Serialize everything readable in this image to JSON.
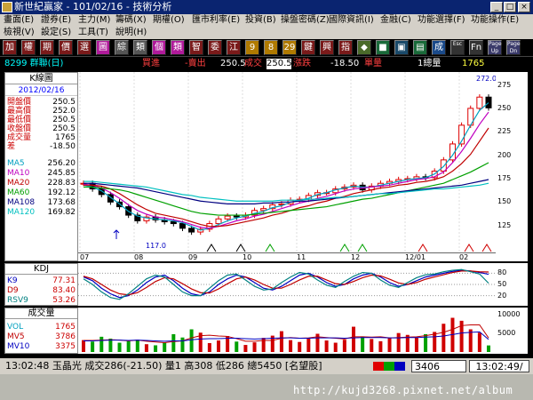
{
  "window": {
    "title": "新世紀贏家 - 101/02/16 - 技術分析",
    "min": "_",
    "max": "□",
    "close": "×"
  },
  "menu": {
    "row1": [
      "畫面(E)",
      "證券(E)",
      "主力(M)",
      "籌碼(X)",
      "期權(O)",
      "匯市利率(E)",
      "投資(B)",
      "操盤密碼(Z)",
      "國際資訊(I)",
      "金融(C)",
      "功能選擇(F)",
      "功能操作(E)"
    ],
    "row2": [
      "檢視(V)",
      "設定(S)",
      "工具(T)",
      "說明(H)"
    ]
  },
  "toolbar": {
    "buttons": [
      {
        "label": "加",
        "bg": "#7a1a1a"
      },
      {
        "label": "權",
        "bg": "#7a1a1a"
      },
      {
        "label": "期",
        "bg": "#7a1a1a"
      },
      {
        "label": "價",
        "bg": "#7a1a1a"
      },
      {
        "label": "選",
        "bg": "#7a1a1a"
      },
      {
        "label": "圖",
        "bg": "#b01a9a"
      },
      {
        "label": "綜",
        "bg": "#555"
      },
      {
        "label": "類",
        "bg": "#555"
      },
      {
        "label": "個",
        "bg": "#b01a9a"
      },
      {
        "label": "類",
        "bg": "#b01a9a"
      },
      {
        "label": "智",
        "bg": "#7a1a1a"
      },
      {
        "label": "委",
        "bg": "#7a1a1a"
      },
      {
        "label": "江",
        "bg": "#7a1a1a"
      },
      {
        "label": "9",
        "bg": "#b07a00"
      },
      {
        "label": "8",
        "bg": "#b07a00"
      },
      {
        "label": "29",
        "bg": "#b07a00"
      },
      {
        "label": "鍵",
        "bg": "#7a1a1a"
      },
      {
        "label": "興",
        "bg": "#7a1a1a"
      },
      {
        "label": "指",
        "bg": "#7a1a1a"
      },
      {
        "label": "◆",
        "bg": "#4a6a2a"
      },
      {
        "label": "■",
        "bg": "#1a6a3a"
      },
      {
        "label": "▣",
        "bg": "#1a4a6a"
      },
      {
        "label": "▤",
        "bg": "#1a6a3a"
      },
      {
        "label": "成",
        "bg": "#1a4a8a"
      },
      {
        "label": "Esc",
        "bg": "#333"
      },
      {
        "label": "Fn",
        "bg": "#333"
      },
      {
        "label": "Page Up",
        "bg": "#3a3a6a"
      },
      {
        "label": "Page Dn",
        "bg": "#3a3a6a"
      }
    ]
  },
  "info": {
    "stock": "8299 群聯(日)",
    "buy_label": "買進",
    "sell_label": "-賣出",
    "sell_value": "250.5",
    "trade_label": "成交",
    "trade_value": "250.5",
    "change_label": "漲跌",
    "change_value": "-18.50",
    "qty_label": "單量",
    "qty_value": "1總量",
    "total_value": "1765"
  },
  "left": {
    "kbox": "K線圖",
    "date": "2012/02/16",
    "ohlc": [
      {
        "label": "開盤價",
        "value": "250.5"
      },
      {
        "label": "最高價",
        "value": "252.0"
      },
      {
        "label": "最低價",
        "value": "250.5"
      },
      {
        "label": "收盤價",
        "value": "250.5"
      },
      {
        "label": "成交量",
        "value": "1765"
      },
      {
        "label": "差",
        "value": "-18.50"
      }
    ],
    "ma": [
      {
        "label": "MA5",
        "value": "256.20",
        "color": "#00a0c0"
      },
      {
        "label": "MA10",
        "value": "245.85",
        "color": "#c000c0"
      },
      {
        "label": "MA20",
        "value": "228.83",
        "color": "#c00000"
      },
      {
        "label": "MA60",
        "value": "192.12",
        "color": "#00a000"
      },
      {
        "label": "MA108",
        "value": "173.68",
        "color": "#000080"
      },
      {
        "label": "MA120",
        "value": "169.82",
        "color": "#00c0c0"
      }
    ]
  },
  "kdj": {
    "title": "KDJ",
    "rows": [
      {
        "label": "K9",
        "value": "77.31",
        "color": "#0000c0"
      },
      {
        "label": "D9",
        "value": "83.40",
        "color": "#c00000"
      },
      {
        "label": "RSV9",
        "value": "53.26",
        "color": "#008080"
      }
    ]
  },
  "volume": {
    "title": "成交量",
    "rows": [
      {
        "label": "VOL",
        "value": "1765",
        "color": "#00a0c0"
      },
      {
        "label": "MV5",
        "value": "3786",
        "color": "#c00000"
      },
      {
        "label": "MV10",
        "value": "3375",
        "color": "#0000c0"
      }
    ]
  },
  "status": {
    "ticker": "13:02:48  玉晶光  成交286(-21.50)  量1  高308  低286  總5450  [名望股]",
    "code": "3406",
    "clock": "13:02:49/"
  },
  "watermark": "http://kujd3268.pixnet.net/album",
  "chart_data": [
    {
      "type": "line",
      "title": "K線圖",
      "x_ticks": [
        "07",
        "08",
        "09",
        "10",
        "11",
        "12",
        "12/01",
        "02"
      ],
      "y_ticks": [
        125,
        150,
        175,
        200,
        225,
        250,
        275
      ],
      "ylim": [
        100,
        285
      ],
      "annotations": [
        "272.0",
        "117.0"
      ],
      "series": [
        {
          "name": "MA5",
          "color": "#00a0c0",
          "values": [
            168,
            166,
            162,
            155,
            148,
            140,
            135,
            133,
            132,
            131,
            130,
            128,
            124,
            120,
            122,
            126,
            130,
            133,
            135,
            138,
            140,
            144,
            146,
            150,
            152,
            154,
            158,
            160,
            163,
            165,
            167,
            166,
            166,
            168,
            170,
            172,
            174,
            175,
            176,
            180,
            188,
            200,
            215,
            232,
            248,
            256
          ]
        },
        {
          "name": "MA10",
          "color": "#c000c0",
          "values": [
            169,
            168,
            165,
            160,
            154,
            147,
            141,
            137,
            134,
            133,
            131,
            129,
            126,
            123,
            122,
            124,
            127,
            130,
            132,
            135,
            137,
            140,
            143,
            146,
            149,
            151,
            154,
            156,
            159,
            162,
            164,
            165,
            166,
            167,
            168,
            170,
            172,
            174,
            175,
            177,
            182,
            192,
            204,
            218,
            233,
            246
          ]
        },
        {
          "name": "MA20",
          "color": "#c00000",
          "values": [
            168,
            168,
            167,
            164,
            159,
            153,
            147,
            142,
            138,
            136,
            134,
            132,
            129,
            126,
            124,
            124,
            125,
            127,
            129,
            131,
            133,
            136,
            138,
            141,
            144,
            146,
            149,
            151,
            154,
            156,
            159,
            161,
            163,
            165,
            166,
            168,
            169,
            171,
            172,
            174,
            177,
            183,
            191,
            201,
            215,
            229
          ]
        },
        {
          "name": "MA60",
          "color": "#00a000",
          "values": [
            166,
            166,
            165,
            164,
            163,
            161,
            158,
            155,
            152,
            149,
            146,
            143,
            140,
            138,
            137,
            136,
            136,
            136,
            136,
            137,
            138,
            139,
            140,
            141,
            142,
            143,
            144,
            145,
            147,
            149,
            151,
            153,
            154,
            156,
            158,
            160,
            162,
            164,
            166,
            168,
            170,
            174,
            178,
            182,
            187,
            192
          ]
        },
        {
          "name": "MA108",
          "color": "#000080",
          "values": [
            170,
            170,
            169,
            168,
            167,
            166,
            165,
            163,
            161,
            159,
            157,
            155,
            153,
            151,
            150,
            149,
            148,
            148,
            148,
            148,
            149,
            149,
            150,
            150,
            151,
            151,
            152,
            153,
            154,
            155,
            156,
            157,
            158,
            159,
            160,
            161,
            162,
            163,
            164,
            165,
            166,
            167,
            168,
            170,
            172,
            174
          ]
        },
        {
          "name": "MA120",
          "color": "#00c0c0",
          "values": [
            172,
            172,
            171,
            170,
            169,
            168,
            167,
            166,
            164,
            162,
            160,
            158,
            157,
            155,
            154,
            153,
            152,
            151,
            151,
            151,
            151,
            151,
            152,
            152,
            152,
            153,
            153,
            154,
            155,
            155,
            156,
            157,
            158,
            159,
            159,
            160,
            161,
            162,
            163,
            164,
            164,
            165,
            166,
            167,
            168,
            170
          ]
        },
        {
          "name": "Close",
          "color": "#000000",
          "values": [
            170,
            164,
            158,
            150,
            145,
            136,
            130,
            134,
            131,
            129,
            127,
            122,
            118,
            121,
            127,
            132,
            135,
            134,
            136,
            141,
            143,
            147,
            148,
            152,
            153,
            157,
            160,
            160,
            164,
            166,
            168,
            163,
            167,
            170,
            172,
            174,
            175,
            177,
            176,
            183,
            195,
            212,
            232,
            250,
            262,
            250.5
          ]
        }
      ]
    },
    {
      "type": "line",
      "title": "KDJ",
      "y_ticks": [
        20,
        50,
        80
      ],
      "ylim": [
        0,
        100
      ],
      "series": [
        {
          "name": "K9",
          "color": "#0000c0",
          "values": [
            70,
            60,
            40,
            25,
            15,
            20,
            35,
            55,
            70,
            75,
            60,
            40,
            25,
            20,
            30,
            50,
            65,
            75,
            70,
            55,
            40,
            35,
            45,
            60,
            75,
            80,
            70,
            55,
            45,
            50,
            65,
            75,
            80,
            70,
            55,
            45,
            50,
            60,
            70,
            75,
            80,
            85,
            88,
            86,
            82,
            77.31
          ]
        },
        {
          "name": "D9",
          "color": "#c00000",
          "values": [
            72,
            65,
            50,
            35,
            25,
            22,
            28,
            42,
            58,
            68,
            65,
            52,
            38,
            28,
            27,
            38,
            52,
            65,
            70,
            62,
            50,
            40,
            40,
            50,
            62,
            72,
            72,
            62,
            52,
            50,
            58,
            68,
            75,
            73,
            64,
            54,
            50,
            55,
            64,
            70,
            76,
            82,
            86,
            86,
            84,
            83.4
          ]
        },
        {
          "name": "RSV9",
          "color": "#008080",
          "values": [
            65,
            50,
            30,
            15,
            10,
            25,
            45,
            65,
            75,
            70,
            50,
            30,
            20,
            20,
            40,
            60,
            75,
            78,
            62,
            45,
            35,
            38,
            55,
            70,
            82,
            78,
            62,
            48,
            42,
            58,
            72,
            82,
            80,
            62,
            48,
            42,
            55,
            68,
            76,
            78,
            84,
            88,
            90,
            84,
            78,
            53.26
          ]
        }
      ]
    },
    {
      "type": "bar",
      "title": "成交量",
      "y_ticks": [
        5000,
        10000
      ],
      "ylim": [
        0,
        11000
      ],
      "values": [
        3200,
        2800,
        4100,
        3600,
        2500,
        2900,
        3300,
        2100,
        1800,
        2600,
        4800,
        3900,
        6100,
        5200,
        2400,
        3100,
        4300,
        2800,
        1900,
        2600,
        3800,
        4400,
        5600,
        3200,
        2700,
        3600,
        4900,
        3100,
        2500,
        3300,
        6800,
        4200,
        3500,
        2900,
        3800,
        5100,
        4600,
        3900,
        4800,
        5400,
        7600,
        9200,
        8400,
        6100,
        5200,
        1765
      ],
      "series": [
        {
          "name": "MV5",
          "color": "#c00000",
          "values": [
            3100,
            3100,
            3200,
            3300,
            3200,
            3000,
            3200,
            2900,
            2700,
            2500,
            2800,
            3000,
            3800,
            4400,
            4500,
            4300,
            4200,
            3600,
            2900,
            2900,
            3100,
            3100,
            3700,
            3900,
            3700,
            3800,
            4100,
            3900,
            3700,
            3500,
            4100,
            4100,
            4000,
            4100,
            3800,
            3900,
            4000,
            4100,
            4400,
            4800,
            5300,
            6100,
            7100,
            7300,
            7300,
            3786
          ]
        },
        {
          "name": "MV10",
          "color": "#0000c0",
          "values": [
            3000,
            3000,
            3100,
            3200,
            3200,
            3100,
            3200,
            3100,
            3000,
            2900,
            3000,
            3000,
            3300,
            3500,
            3600,
            3600,
            3700,
            3700,
            3600,
            3500,
            3600,
            3700,
            3800,
            3800,
            3700,
            3700,
            3800,
            3800,
            3800,
            3700,
            3800,
            3900,
            3900,
            3900,
            3800,
            3800,
            3900,
            3900,
            4000,
            4100,
            4300,
            4700,
            5100,
            5300,
            5400,
            3375
          ]
        }
      ]
    }
  ]
}
